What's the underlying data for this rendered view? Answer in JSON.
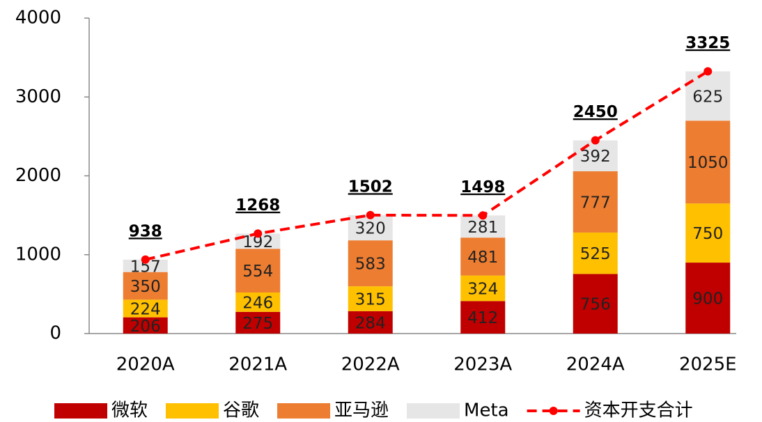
{
  "chart_data": {
    "type": "bar",
    "stacked": true,
    "categories": [
      "2020A",
      "2021A",
      "2022A",
      "2023A",
      "2024A",
      "2025E"
    ],
    "series": [
      {
        "name": "微软",
        "color": "#c00000",
        "values": [
          206,
          275,
          284,
          412,
          756,
          900
        ]
      },
      {
        "name": "谷歌",
        "color": "#ffc000",
        "values": [
          224,
          246,
          315,
          324,
          525,
          750
        ]
      },
      {
        "name": "亚马逊",
        "color": "#ed7d31",
        "values": [
          350,
          554,
          583,
          481,
          777,
          1050
        ]
      },
      {
        "name": "Meta",
        "color": "#e7e6e6",
        "values": [
          157,
          192,
          320,
          281,
          392,
          625
        ]
      },
      {
        "name": "资本开支合计",
        "color": "#ff0000",
        "type": "line",
        "values": [
          938,
          1268,
          1502,
          1498,
          2450,
          3325
        ]
      }
    ],
    "ylim": [
      0,
      4000
    ],
    "yticks": [
      0,
      1000,
      2000,
      3000,
      4000
    ],
    "legend": "bottom"
  }
}
